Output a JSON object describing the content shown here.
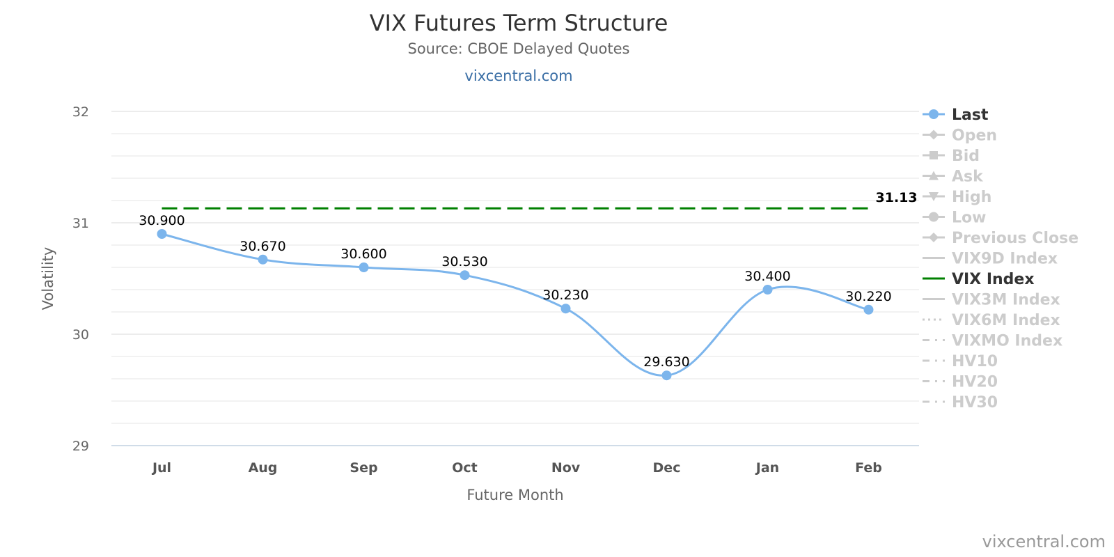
{
  "header": {
    "title": "VIX Futures Term Structure",
    "subtitle": "Source: CBOE Delayed Quotes",
    "link": "vixcentral.com"
  },
  "credits": "vixcentral.com",
  "chart_data": {
    "type": "line",
    "title": "VIX Futures Term Structure",
    "subtitle": "Source: CBOE Delayed Quotes",
    "xlabel": "Future Month",
    "ylabel": "Volatility",
    "categories": [
      "Jul",
      "Aug",
      "Sep",
      "Oct",
      "Nov",
      "Dec",
      "Jan",
      "Feb"
    ],
    "ylim": [
      29,
      32
    ],
    "yticks": [
      29,
      30,
      31,
      32
    ],
    "grid": true,
    "legend_position": "right",
    "series": [
      {
        "name": "Last",
        "values": [
          30.9,
          30.67,
          30.6,
          30.53,
          30.23,
          29.63,
          30.4,
          30.22
        ],
        "labels": [
          "30.900",
          "30.670",
          "30.600",
          "30.530",
          "30.230",
          "29.630",
          "30.400",
          "30.220"
        ],
        "color": "#7cb5ec",
        "smooth": true,
        "marker": "circle"
      },
      {
        "name": "VIX Index",
        "value": 31.13,
        "label": "31.13",
        "color": "#008000",
        "dash": "dashed"
      }
    ],
    "legend": [
      {
        "name": "Last",
        "active": true,
        "symbol": "circle",
        "color": "#7cb5ec"
      },
      {
        "name": "Open",
        "active": false,
        "symbol": "diamond"
      },
      {
        "name": "Bid",
        "active": false,
        "symbol": "square"
      },
      {
        "name": "Ask",
        "active": false,
        "symbol": "triangle"
      },
      {
        "name": "High",
        "active": false,
        "symbol": "triangle-down"
      },
      {
        "name": "Low",
        "active": false,
        "symbol": "circle"
      },
      {
        "name": "Previous Close",
        "active": false,
        "symbol": "diamond"
      },
      {
        "name": "VIX9D Index",
        "active": false,
        "symbol": "line"
      },
      {
        "name": "VIX Index",
        "active": true,
        "symbol": "line",
        "color": "#008000"
      },
      {
        "name": "VIX3M Index",
        "active": false,
        "symbol": "line"
      },
      {
        "name": "VIX6M Index",
        "active": false,
        "symbol": "dotted"
      },
      {
        "name": "VIXMO Index",
        "active": false,
        "symbol": "dashdot"
      },
      {
        "name": "HV10",
        "active": false,
        "symbol": "dashdot"
      },
      {
        "name": "HV20",
        "active": false,
        "symbol": "dashdot"
      },
      {
        "name": "HV30",
        "active": false,
        "symbol": "dashdot"
      }
    ]
  }
}
